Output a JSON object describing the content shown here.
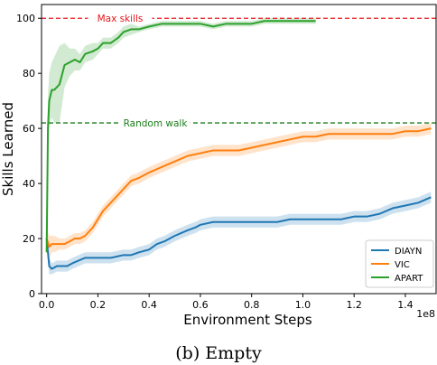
{
  "caption": "(b) Empty",
  "chart_data": {
    "type": "line",
    "title": "",
    "xlabel": "Environment Steps",
    "ylabel": "Skills Learned",
    "x_scale_note": "1e8",
    "xlim": [
      -0.02,
      1.52
    ],
    "ylim": [
      0,
      105
    ],
    "xticks": [
      0.0,
      0.2,
      0.4,
      0.6,
      0.8,
      1.0,
      1.2,
      1.4
    ],
    "xtick_labels": [
      "0.0",
      "0.2",
      "0.4",
      "0.6",
      "0.8",
      "1.0",
      "1.2",
      "1.4"
    ],
    "yticks": [
      0,
      20,
      40,
      60,
      80,
      100
    ],
    "ytick_labels": [
      "0",
      "20",
      "40",
      "60",
      "80",
      "100"
    ],
    "grid": false,
    "legend_position": "lower-right",
    "reference_lines": [
      {
        "label": "Max skills",
        "y": 100,
        "color": "#e8161b"
      },
      {
        "label": "Random walk",
        "y": 62,
        "color": "#1a7f1a"
      }
    ],
    "series": [
      {
        "name": "DIAYN",
        "color": "#1f77b4",
        "x": [
          0.0,
          0.01,
          0.02,
          0.04,
          0.06,
          0.08,
          0.1,
          0.15,
          0.2,
          0.25,
          0.3,
          0.33,
          0.36,
          0.4,
          0.43,
          0.46,
          0.5,
          0.55,
          0.58,
          0.6,
          0.65,
          0.7,
          0.75,
          0.8,
          0.85,
          0.9,
          0.95,
          1.0,
          1.05,
          1.1,
          1.15,
          1.2,
          1.25,
          1.3,
          1.35,
          1.4,
          1.45,
          1.5
        ],
        "y": [
          20,
          10,
          9,
          10,
          10,
          10,
          11,
          13,
          13,
          13,
          14,
          14,
          15,
          16,
          18,
          19,
          21,
          23,
          24,
          25,
          26,
          26,
          26,
          26,
          26,
          26,
          27,
          27,
          27,
          27,
          27,
          28,
          28,
          29,
          31,
          32,
          33,
          35
        ],
        "band": [
          3,
          3,
          2,
          2,
          2,
          2,
          2,
          2,
          2,
          2,
          2,
          2,
          2,
          2,
          2,
          2,
          2,
          2,
          2,
          2,
          2,
          2,
          2,
          2,
          2,
          2,
          2,
          2,
          2,
          2,
          2,
          2,
          2,
          2,
          2,
          2,
          2,
          2
        ]
      },
      {
        "name": "VIC",
        "color": "#ff7f0e",
        "x": [
          0.0,
          0.01,
          0.02,
          0.03,
          0.05,
          0.07,
          0.09,
          0.11,
          0.13,
          0.15,
          0.18,
          0.2,
          0.22,
          0.25,
          0.28,
          0.3,
          0.33,
          0.36,
          0.4,
          0.45,
          0.5,
          0.55,
          0.6,
          0.65,
          0.7,
          0.75,
          0.8,
          0.85,
          0.9,
          0.95,
          1.0,
          1.05,
          1.1,
          1.15,
          1.2,
          1.25,
          1.3,
          1.35,
          1.4,
          1.45,
          1.5
        ],
        "y": [
          20,
          17,
          18,
          18,
          18,
          18,
          19,
          20,
          20,
          21,
          24,
          27,
          30,
          33,
          36,
          38,
          41,
          42,
          44,
          46,
          48,
          50,
          51,
          52,
          52,
          52,
          53,
          54,
          55,
          56,
          57,
          57,
          58,
          58,
          58,
          58,
          58,
          58,
          59,
          59,
          60
        ],
        "band": [
          4,
          4,
          3,
          3,
          2,
          2,
          2,
          2,
          2,
          2,
          2,
          2,
          2,
          2,
          2,
          2,
          2,
          2,
          2,
          2,
          2,
          2,
          2,
          2,
          2,
          2,
          2,
          2,
          2,
          2,
          2,
          2,
          2,
          2,
          2,
          2,
          2,
          2,
          2,
          2,
          2
        ]
      },
      {
        "name": "APART",
        "color": "#2ca02c",
        "x": [
          0.0,
          0.005,
          0.01,
          0.02,
          0.03,
          0.05,
          0.07,
          0.09,
          0.11,
          0.13,
          0.15,
          0.18,
          0.2,
          0.22,
          0.25,
          0.28,
          0.3,
          0.33,
          0.36,
          0.4,
          0.45,
          0.5,
          0.55,
          0.6,
          0.65,
          0.7,
          0.75,
          0.8,
          0.85,
          0.9,
          0.95,
          1.0,
          1.05
        ],
        "y": [
          15,
          60,
          70,
          74,
          74,
          76,
          83,
          84,
          85,
          84,
          87,
          88,
          89,
          91,
          91,
          93,
          95,
          96,
          96,
          97,
          98,
          98,
          98,
          98,
          97,
          98,
          98,
          98,
          99,
          99,
          99,
          99,
          99
        ],
        "band": [
          6,
          12,
          10,
          10,
          12,
          14,
          8,
          5,
          4,
          3,
          3,
          3,
          2,
          2,
          2,
          2,
          2,
          2,
          1,
          1,
          1,
          1,
          1,
          1,
          1,
          1,
          1,
          1,
          1,
          1,
          1,
          1,
          1
        ]
      }
    ]
  }
}
